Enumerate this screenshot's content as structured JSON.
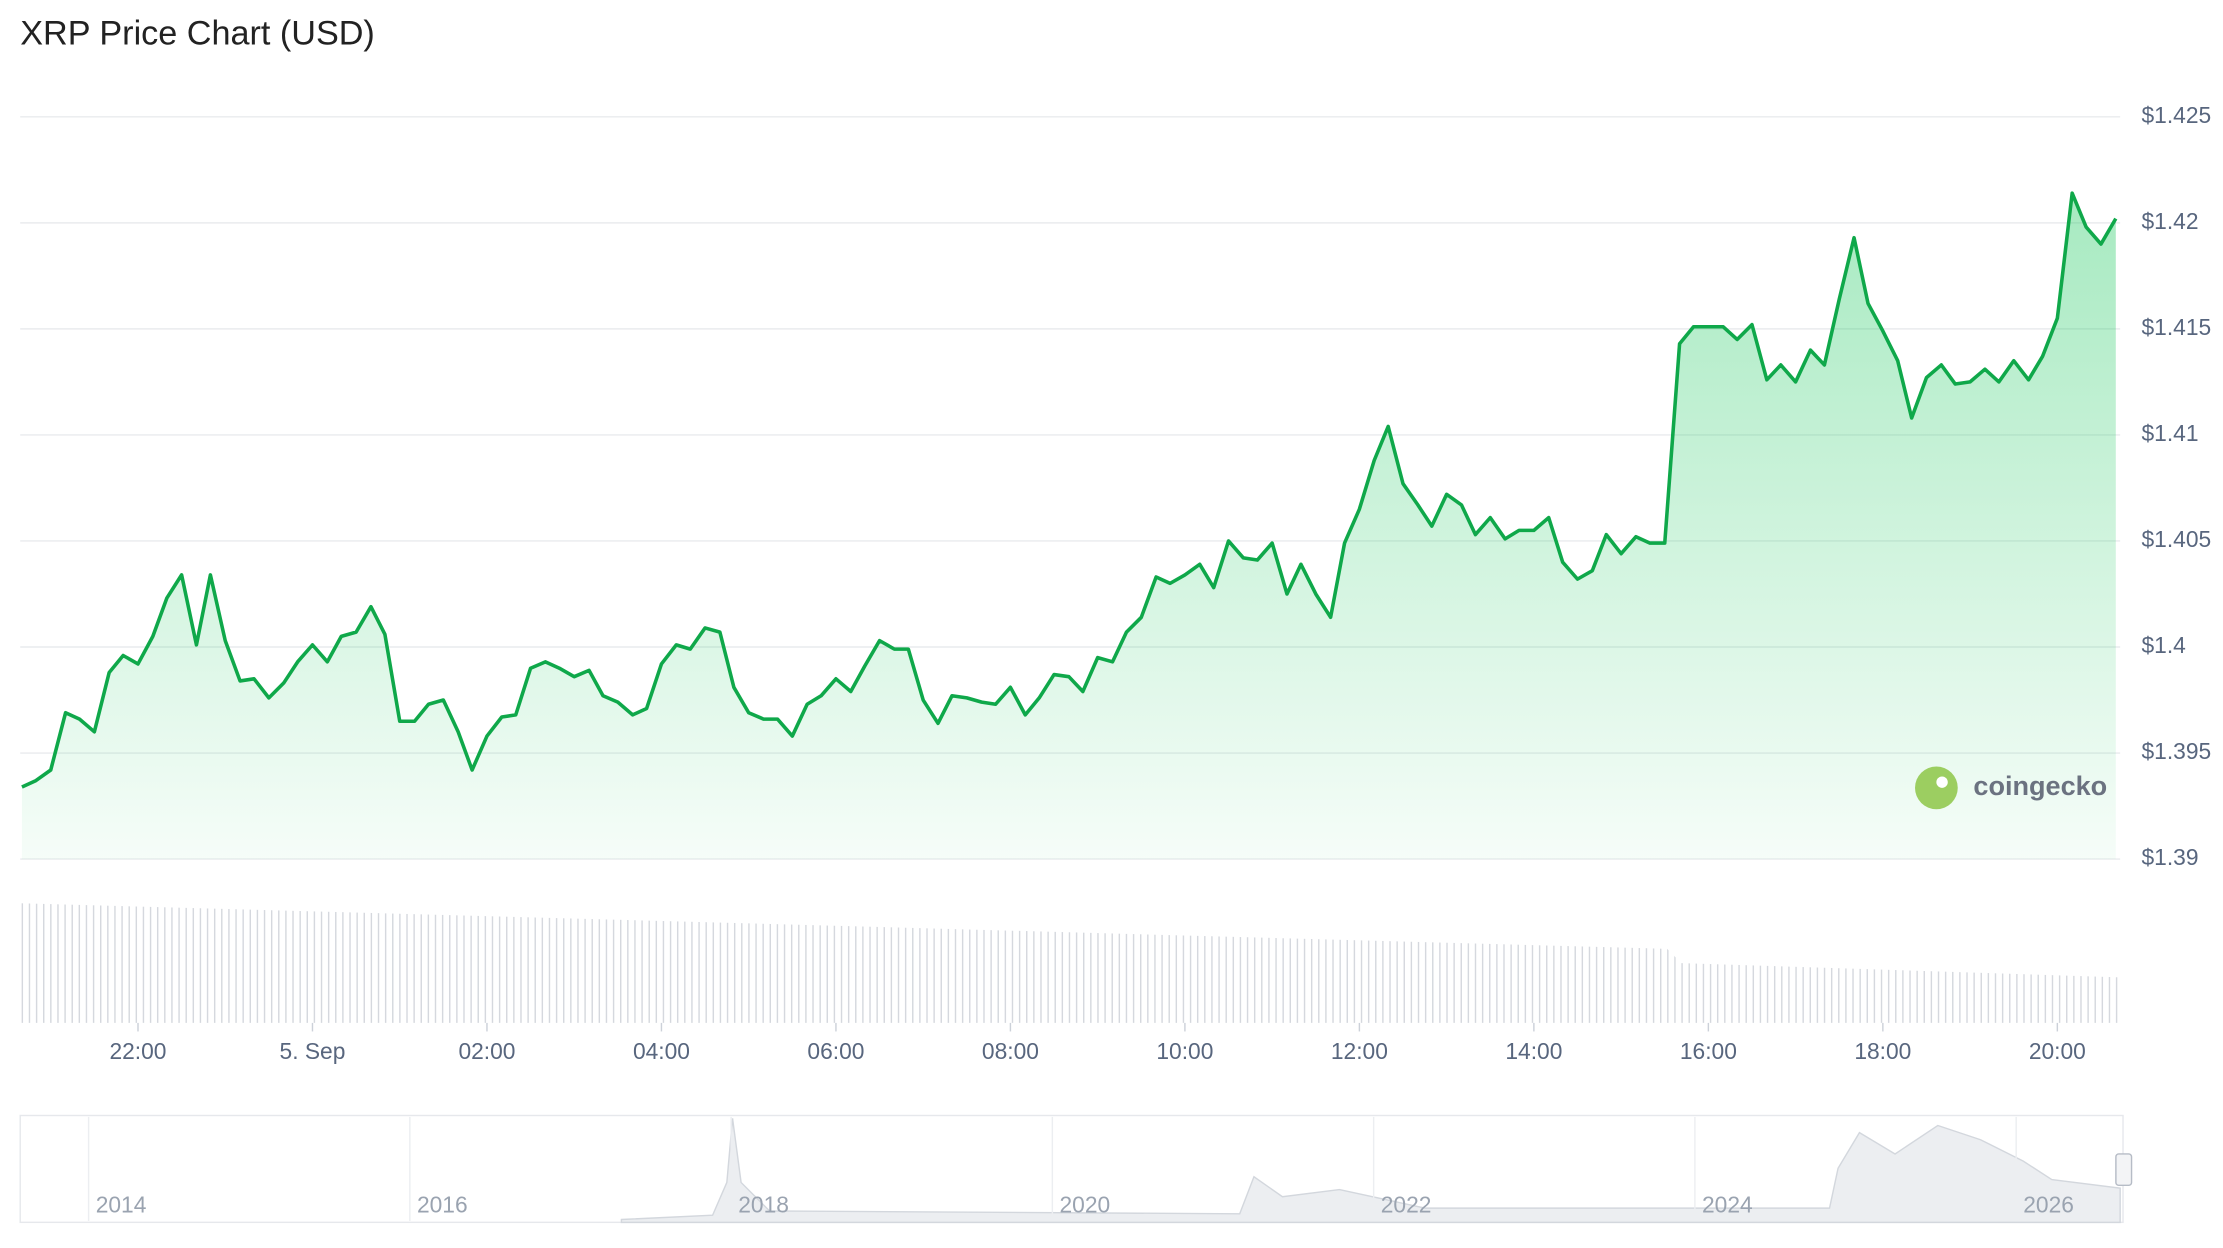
{
  "chart_data": {
    "type": "line",
    "title": "XRP Price Chart (USD)",
    "watermark": "coingecko",
    "x": [
      -3.33,
      -3.17,
      -3,
      -2.83,
      -2.67,
      -2.5,
      -2.33,
      -2.17,
      -2,
      -1.83,
      -1.67,
      -1.5,
      -1.33,
      -1.17,
      -1,
      -0.83,
      -0.67,
      -0.5,
      -0.33,
      -0.17,
      0,
      0.17,
      0.33,
      0.5,
      0.67,
      0.83,
      1,
      1.17,
      1.33,
      1.5,
      1.67,
      1.83,
      2,
      2.17,
      2.33,
      2.5,
      2.67,
      2.83,
      3,
      3.17,
      3.33,
      3.5,
      3.67,
      3.83,
      4,
      4.17,
      4.33,
      4.5,
      4.67,
      4.83,
      5,
      5.17,
      5.33,
      5.5,
      5.67,
      5.83,
      6,
      6.17,
      6.33,
      6.5,
      6.67,
      6.83,
      7,
      7.17,
      7.33,
      7.5,
      7.67,
      7.83,
      8,
      8.17,
      8.33,
      8.5,
      8.67,
      8.83,
      9,
      9.17,
      9.33,
      9.5,
      9.67,
      9.83,
      10,
      10.17,
      10.33,
      10.5,
      10.67,
      10.83,
      11,
      11.17,
      11.33,
      11.5,
      11.67,
      11.83,
      12,
      12.17,
      12.33,
      12.5,
      12.67,
      12.83,
      13,
      13.17,
      13.33,
      13.5,
      13.67,
      13.83,
      14,
      14.17,
      14.33,
      14.5,
      14.67,
      14.83,
      15,
      15.17,
      15.33,
      15.5,
      15.67,
      15.83,
      16,
      16.17,
      16.33,
      16.5,
      16.67,
      16.83,
      17,
      17.17,
      17.33,
      17.5,
      17.67,
      17.83,
      18,
      18.17,
      18.33,
      18.5,
      18.67,
      18.83,
      19,
      19.17,
      19.33,
      19.5,
      19.67,
      19.83,
      20,
      20.17,
      20.33,
      20.5,
      20.67
    ],
    "series": [
      {
        "color": "#0fa84a",
        "values": [
          1.3934,
          1.3937,
          1.3942,
          1.3969,
          1.3966,
          1.396,
          1.3988,
          1.3996,
          1.3992,
          1.4005,
          1.4023,
          1.4034,
          1.4001,
          1.4034,
          1.4003,
          1.3984,
          1.3985,
          1.3976,
          1.3983,
          1.3993,
          1.4001,
          1.3993,
          1.4005,
          1.4007,
          1.4019,
          1.4006,
          1.3965,
          1.3965,
          1.3973,
          1.3975,
          1.396,
          1.3942,
          1.3958,
          1.3967,
          1.3968,
          1.399,
          1.3993,
          1.399,
          1.3986,
          1.3989,
          1.3977,
          1.3974,
          1.3968,
          1.3971,
          1.3992,
          1.4001,
          1.3999,
          1.4009,
          1.4007,
          1.3981,
          1.3969,
          1.3966,
          1.3966,
          1.3958,
          1.3973,
          1.3977,
          1.3985,
          1.3979,
          1.3991,
          1.4003,
          1.3999,
          1.3999,
          1.3975,
          1.3964,
          1.3977,
          1.3976,
          1.3974,
          1.3973,
          1.3981,
          1.3968,
          1.3976,
          1.3987,
          1.3986,
          1.3979,
          1.3995,
          1.3993,
          1.4007,
          1.4014,
          1.4033,
          1.403,
          1.4034,
          1.4039,
          1.4028,
          1.405,
          1.4042,
          1.4041,
          1.4049,
          1.4025,
          1.4039,
          1.4025,
          1.4014,
          1.4049,
          1.4065,
          1.4088,
          1.4104,
          1.4077,
          1.4067,
          1.4057,
          1.4072,
          1.4067,
          1.4053,
          1.4061,
          1.4051,
          1.4055,
          1.4055,
          1.4061,
          1.404,
          1.4032,
          1.4036,
          1.4053,
          1.4044,
          1.4052,
          1.4049,
          1.4049,
          1.4143,
          1.4151,
          1.4151,
          1.4151,
          1.4145,
          1.4152,
          1.4126,
          1.4133,
          1.4125,
          1.414,
          1.4133,
          1.4164,
          1.4193,
          1.4162,
          1.4149,
          1.4135,
          1.4108,
          1.4127,
          1.4133,
          1.4124,
          1.4125,
          1.4131,
          1.4125,
          1.4135,
          1.4126,
          1.4137,
          1.4155,
          1.4214,
          1.4198,
          1.419,
          1.4202
        ]
      }
    ],
    "xlim": [
      -3.35,
      20.72
    ],
    "xticks": [
      {
        "value": -2,
        "label": "22:00"
      },
      {
        "value": 0,
        "label": "5. Sep"
      },
      {
        "value": 2,
        "label": "02:00"
      },
      {
        "value": 4,
        "label": "04:00"
      },
      {
        "value": 6,
        "label": "06:00"
      },
      {
        "value": 8,
        "label": "08:00"
      },
      {
        "value": 10,
        "label": "10:00"
      },
      {
        "value": 12,
        "label": "12:00"
      },
      {
        "value": 14,
        "label": "14:00"
      },
      {
        "value": 16,
        "label": "16:00"
      },
      {
        "value": 18,
        "label": "18:00"
      },
      {
        "value": 20,
        "label": "20:00"
      }
    ],
    "ylim": [
      1.39,
      1.425
    ],
    "yticks": [
      {
        "value": 1.39,
        "label": "$1.39"
      },
      {
        "value": 1.395,
        "label": "$1.395"
      },
      {
        "value": 1.4,
        "label": "$1.4"
      },
      {
        "value": 1.405,
        "label": "$1.405"
      },
      {
        "value": 1.41,
        "label": "$1.41"
      },
      {
        "value": 1.415,
        "label": "$1.415"
      },
      {
        "value": 1.42,
        "label": "$1.42"
      },
      {
        "value": 1.425,
        "label": "$1.425"
      }
    ],
    "grid": true,
    "navigator_years": [
      "2014",
      "2016",
      "2018",
      "2020",
      "2022",
      "2024",
      "2026"
    ]
  }
}
